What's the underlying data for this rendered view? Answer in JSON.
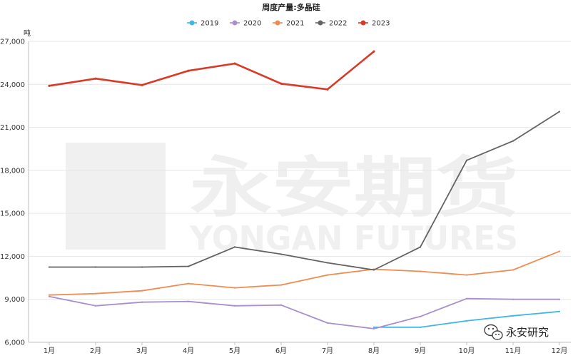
{
  "chart_data": {
    "type": "line",
    "title": "周度产量:多晶硅",
    "y_unit": "吨",
    "ylim": [
      6000,
      27000
    ],
    "y_ticks": [
      6000,
      9000,
      12000,
      15000,
      18000,
      21000,
      24000,
      27000
    ],
    "y_tick_labels": [
      "6,000",
      "9,000",
      "12,000",
      "15,000",
      "18,000",
      "21,000",
      "24,000",
      "27,000"
    ],
    "categories": [
      "1月",
      "2月",
      "3月",
      "4月",
      "5月",
      "6月",
      "7月",
      "8月",
      "9月",
      "10月",
      "11月",
      "12月"
    ],
    "legend_position": "top-center",
    "grid": true,
    "series": [
      {
        "name": "2019",
        "color": "#41b6e6",
        "values": [
          null,
          null,
          null,
          null,
          null,
          null,
          null,
          7050,
          7050,
          7500,
          7850,
          8150
        ]
      },
      {
        "name": "2020",
        "color": "#a98fcf",
        "values": [
          9200,
          8550,
          8800,
          8850,
          8550,
          8600,
          7350,
          6950,
          7800,
          9050,
          9000,
          9000
        ]
      },
      {
        "name": "2021",
        "color": "#f08c50",
        "values": [
          9300,
          9400,
          9600,
          10100,
          9800,
          10000,
          10700,
          11100,
          10950,
          10700,
          11050,
          12350
        ]
      },
      {
        "name": "2022",
        "color": "#636363",
        "values": [
          11250,
          11250,
          11250,
          11300,
          12650,
          12150,
          11550,
          11050,
          12650,
          18700,
          20050,
          22100
        ]
      },
      {
        "name": "2023",
        "color": "#d93a26",
        "values": [
          23900,
          24400,
          23950,
          24950,
          25450,
          24050,
          23650,
          26300,
          null,
          null,
          null,
          null
        ]
      }
    ]
  },
  "watermark": {
    "logo_text": "永安期货",
    "latin_text": "YONGAN FUTURES",
    "small_text": "FUTURES",
    "badge_text": "YONGAN"
  },
  "wechat": {
    "label": "永安研究",
    "icon": "wechat-icon"
  }
}
